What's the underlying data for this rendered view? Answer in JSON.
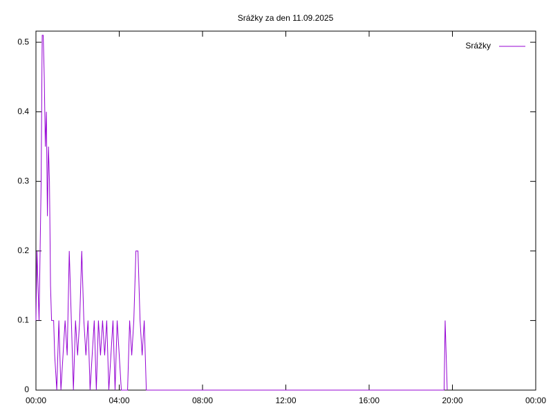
{
  "chart_data": {
    "type": "line",
    "title": "Srážky za den 11.09.2025",
    "series": [
      {
        "name": "Srážky",
        "color": "#9400d3",
        "x": [
          0,
          0.05,
          0.1,
          0.15,
          0.2,
          0.25,
          0.3,
          0.35,
          0.4,
          0.45,
          0.5,
          0.55,
          0.6,
          0.65,
          0.7,
          0.75,
          0.8,
          0.85,
          0.9,
          1.0,
          1.1,
          1.2,
          1.3,
          1.4,
          1.5,
          1.6,
          1.7,
          1.8,
          1.9,
          2.0,
          2.1,
          2.2,
          2.3,
          2.4,
          2.5,
          2.6,
          2.7,
          2.8,
          2.9,
          3.0,
          3.1,
          3.2,
          3.3,
          3.4,
          3.5,
          3.6,
          3.7,
          3.8,
          3.9,
          4.0,
          4.1,
          4.2,
          4.3,
          4.4,
          4.5,
          4.6,
          4.7,
          4.8,
          4.9,
          5.0,
          5.1,
          5.2,
          5.3,
          19.6,
          19.65,
          19.7,
          19.75
        ],
        "values": [
          0.1,
          0.2,
          0.15,
          0.1,
          0.2,
          0.3,
          0.51,
          0.51,
          0.45,
          0.35,
          0.4,
          0.25,
          0.35,
          0.3,
          0.15,
          0.1,
          0.1,
          0.1,
          0.05,
          0,
          0.1,
          0,
          0.05,
          0.1,
          0.05,
          0.2,
          0.1,
          0,
          0.1,
          0.05,
          0.1,
          0.2,
          0.1,
          0.05,
          0.1,
          0,
          0.05,
          0.1,
          0,
          0.1,
          0.05,
          0.1,
          0.05,
          0.1,
          0,
          0.05,
          0.1,
          0,
          0.1,
          0.05,
          0,
          0,
          0,
          0,
          0.1,
          0.05,
          0.1,
          0.2,
          0.2,
          0.1,
          0.05,
          0.1,
          0,
          0,
          0.1,
          0.05,
          0
        ]
      }
    ],
    "xlim": [
      0,
      24
    ],
    "xticks": [
      {
        "value": 0,
        "label": "00:00"
      },
      {
        "value": 4,
        "label": "04:00"
      },
      {
        "value": 8,
        "label": "08:00"
      },
      {
        "value": 12,
        "label": "12:00"
      },
      {
        "value": 16,
        "label": "16:00"
      },
      {
        "value": 20,
        "label": "20:00"
      },
      {
        "value": 24,
        "label": "00:00"
      }
    ],
    "ylim": [
      0,
      0.516
    ],
    "yticks": [
      0,
      0.1,
      0.2,
      0.3,
      0.4,
      0.5
    ],
    "legend": "top-right"
  }
}
